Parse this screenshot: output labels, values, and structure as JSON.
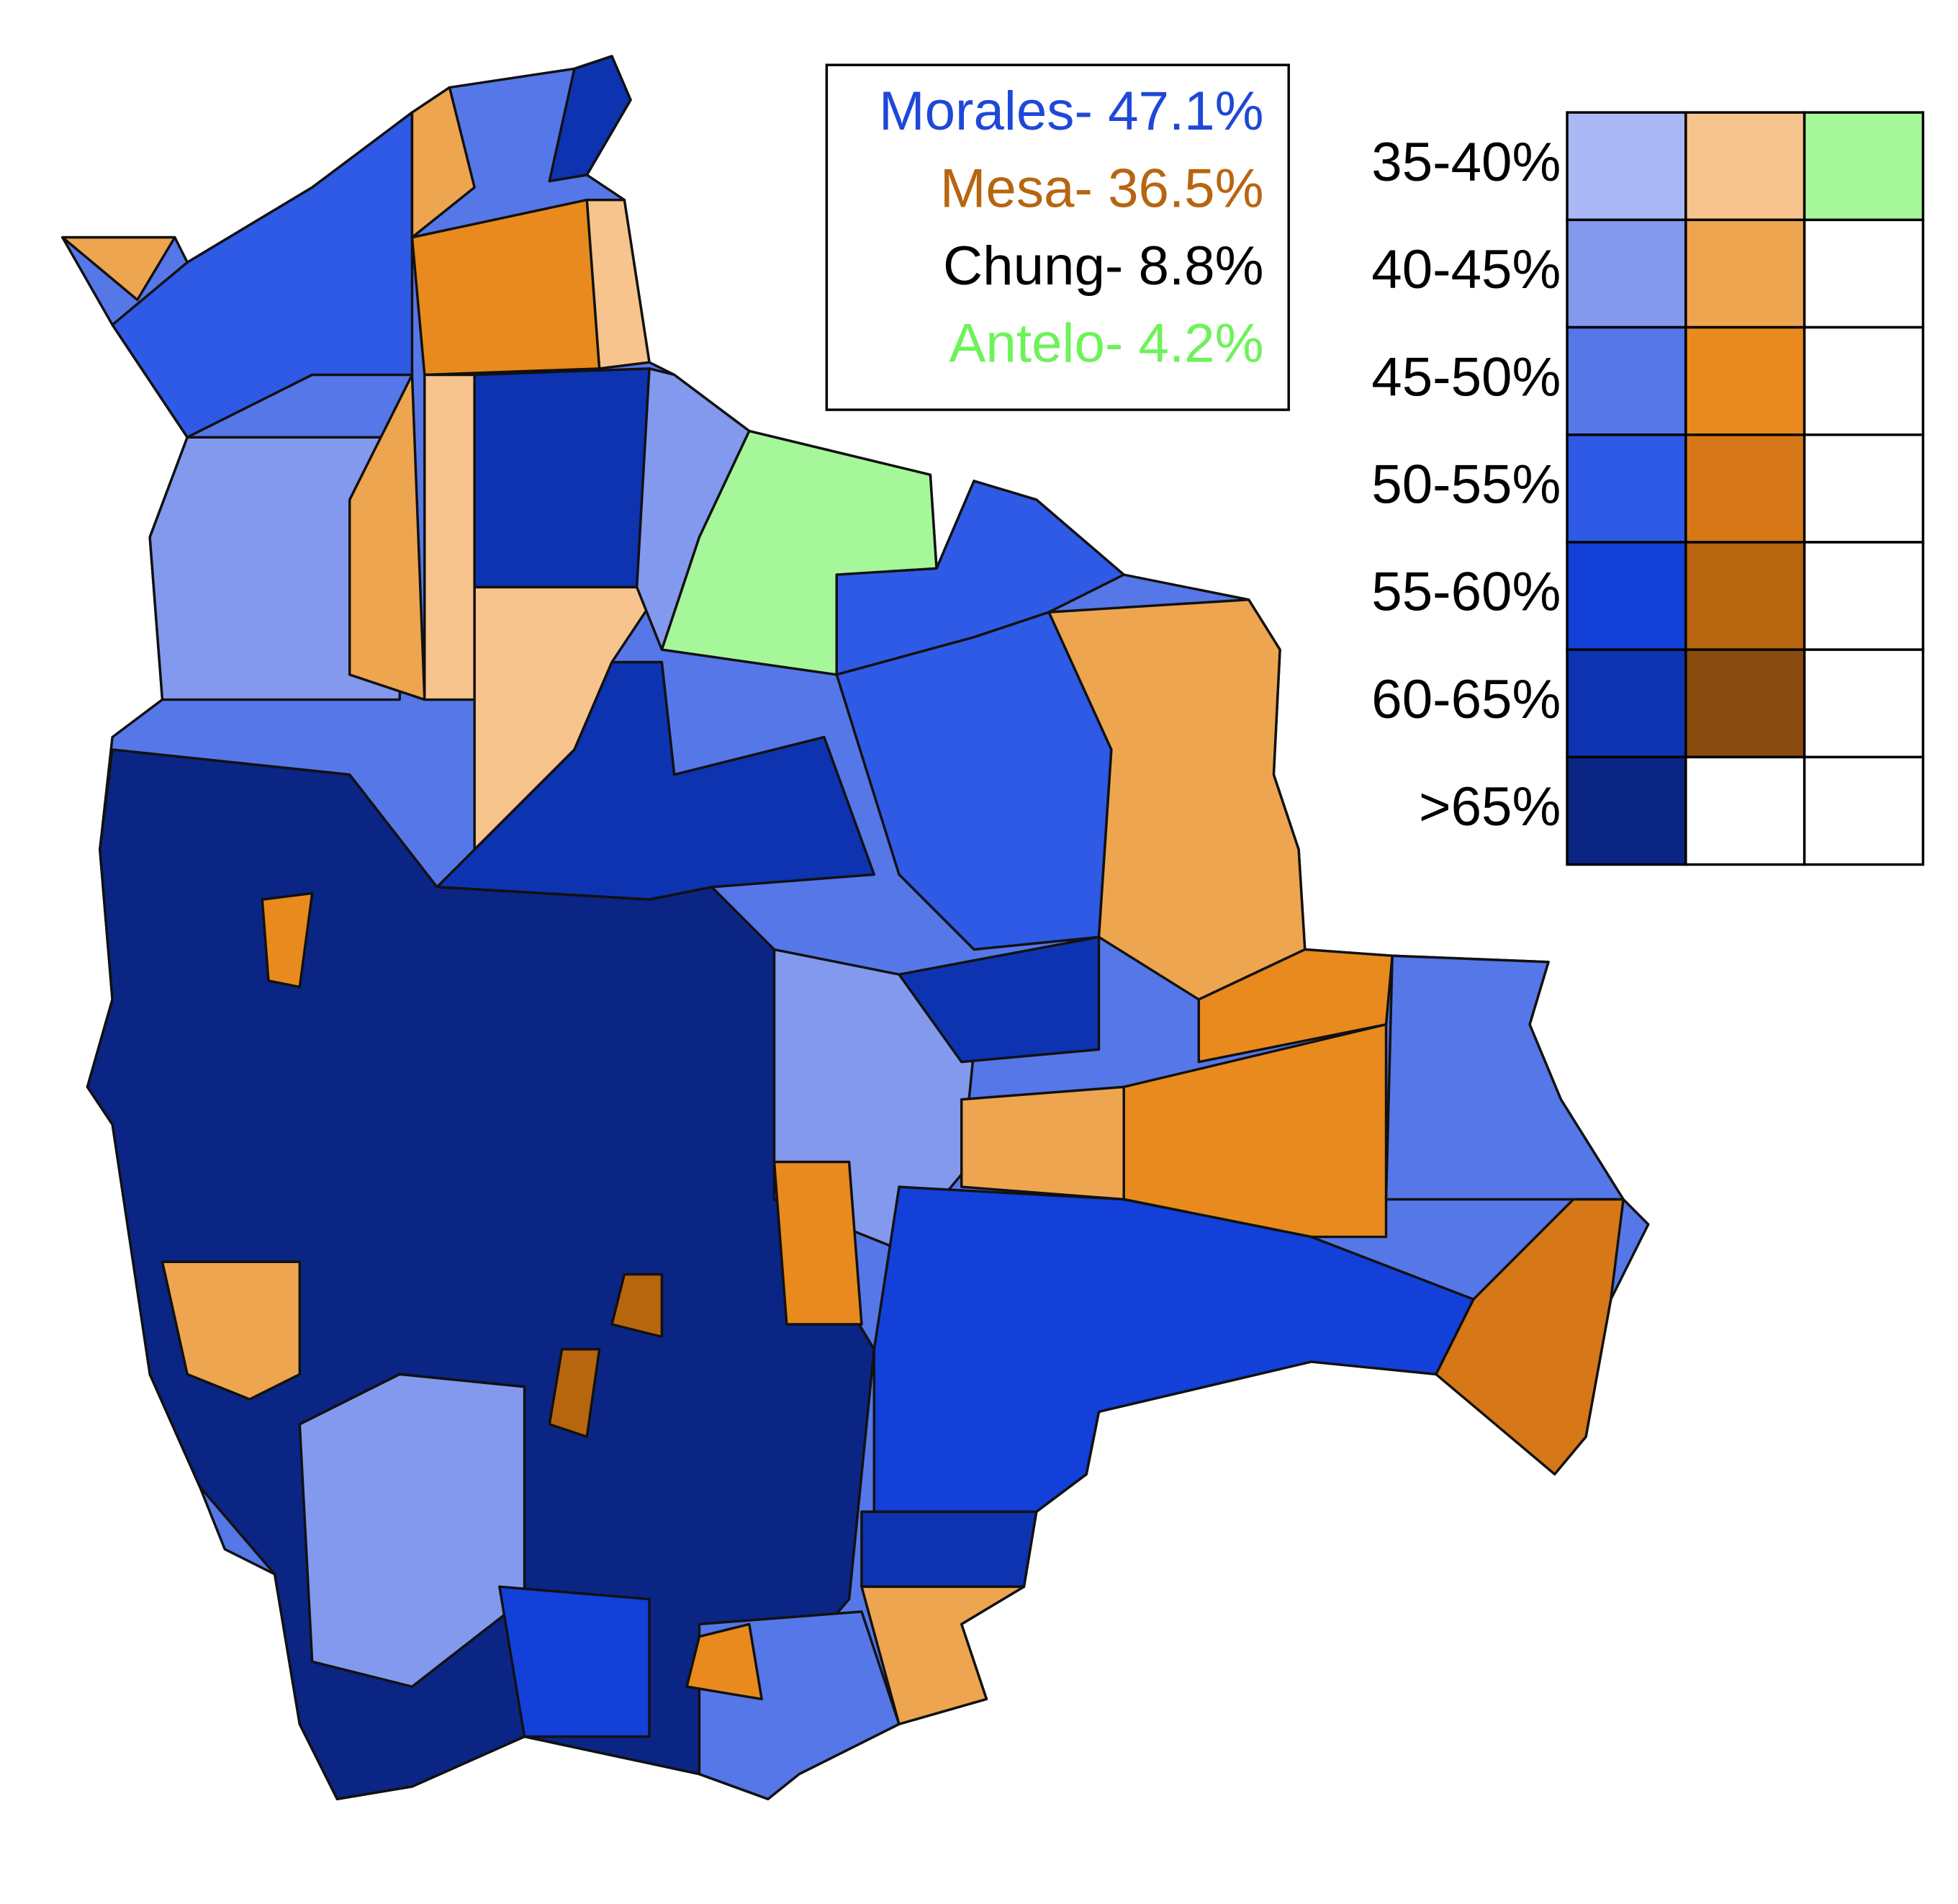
{
  "results": [
    {
      "label": "Morales- 47.1%",
      "color": "#1f48d8"
    },
    {
      "label": "Mesa- 36.5%",
      "color": "#b8650f"
    },
    {
      "label": "Chung- 8.8%",
      "color": "#000000"
    },
    {
      "label": "Antelo- 4.2%",
      "color": "#6ef25a"
    }
  ],
  "legend": {
    "rows": [
      "35-40%",
      "40-45%",
      "45-50%",
      "50-55%",
      "55-60%",
      "60-65%",
      ">65%"
    ],
    "swatches": [
      [
        "#aab8f5",
        "#f6c48c",
        "#a6f79a"
      ],
      [
        "#8399ee",
        "#eea550",
        null
      ],
      [
        "#5677e8",
        "#e98a1f",
        null
      ],
      [
        "#2f5ae6",
        "#d67818",
        null
      ],
      [
        "#1240d8",
        "#b8650f",
        null
      ],
      [
        "#0d33b0",
        "#8a4b10",
        null
      ],
      [
        "#0a2583",
        null,
        null
      ]
    ]
  }
}
